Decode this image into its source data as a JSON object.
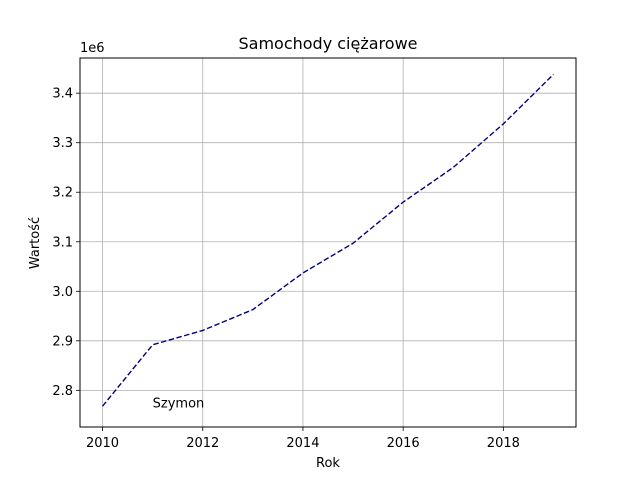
{
  "chart_data": {
    "type": "line",
    "title": "Samochody ciężarowe",
    "xlabel": "Rok",
    "ylabel": "Wartość",
    "y_offset_text": "1e6",
    "xlim": [
      2009.55,
      2019.45
    ],
    "ylim": [
      2726000,
      3471000
    ],
    "x_ticks": [
      2010,
      2012,
      2014,
      2016,
      2018
    ],
    "x_tick_labels": [
      "2010",
      "2012",
      "2014",
      "2016",
      "2018"
    ],
    "y_ticks": [
      2800000,
      2900000,
      3000000,
      3100000,
      3200000,
      3300000,
      3400000
    ],
    "y_tick_labels": [
      "2.8",
      "2.9",
      "3.0",
      "3.1",
      "3.2",
      "3.3",
      "3.4"
    ],
    "grid": true,
    "series": [
      {
        "color": "#000080",
        "linestyle": "dashed",
        "x": [
          2010,
          2011,
          2012,
          2013,
          2014,
          2015,
          2016,
          2017,
          2018,
          2019
        ],
        "values": [
          2768000,
          2892000,
          2921000,
          2963000,
          3037000,
          3097000,
          3180000,
          3250000,
          3338000,
          3438000
        ]
      }
    ],
    "annotations": [
      {
        "text": "Szymon",
        "x": 2011,
        "y": 2765000
      }
    ]
  }
}
